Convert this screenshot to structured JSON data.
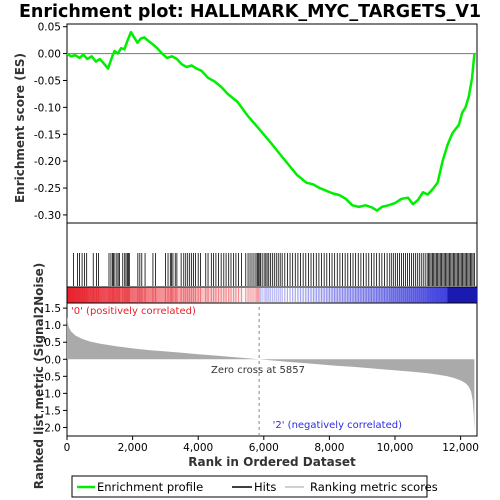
{
  "chart_data": {
    "type": "line",
    "title": "Enrichment plot: HALLMARK_MYC_TARGETS_V1",
    "xlabel": "Rank in Ordered Dataset",
    "ylabel_top": "Enrichment score (ES)",
    "ylabel_bottom": "Ranked list metric (Signal2Noise)",
    "xlim": [
      0,
      12500
    ],
    "x_ticks": [
      0,
      2000,
      4000,
      6000,
      8000,
      10000,
      12000
    ],
    "x_tick_labels": [
      "0",
      "2,000",
      "4,000",
      "6,000",
      "8,000",
      "10,000",
      "12,000"
    ],
    "es_ylim": [
      -0.315,
      0.055
    ],
    "es_ticks": [
      0.05,
      0.0,
      -0.05,
      -0.1,
      -0.15,
      -0.2,
      -0.25,
      -0.3
    ],
    "es_tick_labels": [
      "0.05",
      "0.00",
      "-0.05",
      "-0.10",
      "-0.15",
      "-0.20",
      "-0.25",
      "-0.30"
    ],
    "metric_ylim": [
      -2.25,
      1.65
    ],
    "metric_ticks": [
      1.5,
      1.0,
      0.5,
      0.0,
      -0.5,
      -1.0,
      -1.5,
      -2.0
    ],
    "metric_tick_labels": [
      "1.5",
      "1.0",
      "0.5",
      "0.0",
      "-0.5",
      "-1.0",
      "-1.5",
      "-2.0"
    ],
    "series": [
      {
        "name": "Enrichment profile",
        "color": "#00ee00",
        "x": [
          0,
          120,
          250,
          380,
          500,
          620,
          750,
          880,
          1000,
          1120,
          1250,
          1380,
          1450,
          1550,
          1650,
          1750,
          1850,
          1950,
          2050,
          2150,
          2250,
          2350,
          2450,
          2600,
          2750,
          2900,
          3050,
          3200,
          3350,
          3500,
          3650,
          3800,
          3950,
          4100,
          4300,
          4500,
          4700,
          4900,
          5200,
          5500,
          5857,
          6200,
          6600,
          7000,
          7300,
          7500,
          7700,
          7900,
          8100,
          8300,
          8500,
          8700,
          8900,
          9100,
          9300,
          9450,
          9600,
          9800,
          10000,
          10200,
          10400,
          10550,
          10700,
          10850,
          11000,
          11150,
          11300,
          11450,
          11600,
          11750,
          11850,
          11950,
          12050,
          12150,
          12250,
          12350,
          12420
        ],
        "values": [
          0.0,
          -0.005,
          -0.003,
          -0.008,
          -0.002,
          -0.01,
          -0.005,
          -0.015,
          -0.01,
          -0.018,
          -0.028,
          -0.005,
          0.005,
          0.0,
          0.01,
          0.008,
          0.025,
          0.04,
          0.03,
          0.02,
          0.028,
          0.03,
          0.025,
          0.018,
          0.01,
          0.0,
          -0.008,
          -0.005,
          -0.01,
          -0.02,
          -0.025,
          -0.022,
          -0.028,
          -0.032,
          -0.045,
          -0.052,
          -0.062,
          -0.075,
          -0.09,
          -0.115,
          -0.14,
          -0.165,
          -0.195,
          -0.225,
          -0.24,
          -0.243,
          -0.25,
          -0.255,
          -0.26,
          -0.263,
          -0.27,
          -0.282,
          -0.285,
          -0.282,
          -0.286,
          -0.292,
          -0.285,
          -0.282,
          -0.278,
          -0.27,
          -0.268,
          -0.28,
          -0.272,
          -0.258,
          -0.262,
          -0.252,
          -0.24,
          -0.2,
          -0.17,
          -0.148,
          -0.14,
          -0.132,
          -0.11,
          -0.1,
          -0.08,
          -0.045,
          0.0
        ]
      },
      {
        "name": "Hits",
        "color": "#000000"
      },
      {
        "name": "Ranking metric scores",
        "color": "#c0c0c0",
        "x": [
          0,
          50,
          120,
          250,
          450,
          700,
          1000,
          1500,
          2000,
          2500,
          3000,
          3500,
          4000,
          4500,
          5000,
          5500,
          5857,
          6200,
          6700,
          7200,
          7700,
          8200,
          8700,
          9200,
          9700,
          10200,
          10700,
          11000,
          11300,
          11600,
          11800,
          12000,
          12150,
          12250,
          12320,
          12370,
          12400,
          12420
        ],
        "values": [
          1.25,
          0.95,
          0.82,
          0.7,
          0.6,
          0.52,
          0.46,
          0.38,
          0.32,
          0.27,
          0.23,
          0.19,
          0.15,
          0.11,
          0.07,
          0.03,
          0.0,
          -0.03,
          -0.07,
          -0.11,
          -0.15,
          -0.19,
          -0.22,
          -0.26,
          -0.3,
          -0.34,
          -0.38,
          -0.41,
          -0.45,
          -0.5,
          -0.55,
          -0.62,
          -0.7,
          -0.8,
          -0.95,
          -1.2,
          -1.6,
          -2.12
        ]
      }
    ],
    "hits_x": [
      200,
      320,
      380,
      460,
      530,
      600,
      800,
      900,
      960,
      1280,
      1340,
      1390,
      1420,
      1460,
      1520,
      1560,
      1600,
      1700,
      1760,
      1800,
      1840,
      1870,
      1900,
      2160,
      2220,
      2280,
      2380,
      2620,
      2700,
      3000,
      3080,
      3150,
      3190,
      3230,
      3300,
      3350,
      3480,
      3560,
      3620,
      3680,
      3740,
      3800,
      3860,
      3920,
      4000,
      4070,
      4230,
      4300,
      4400,
      4470,
      4540,
      4620,
      4700,
      4780,
      4850,
      4930,
      5000,
      5080,
      5150,
      5230,
      5320,
      5450,
      5520,
      5580,
      5640,
      5700,
      5760,
      5800,
      5830,
      5860,
      5900,
      5950,
      6010,
      6060,
      6100,
      6150,
      6200,
      6260,
      6320,
      6380,
      6440,
      6500,
      6560,
      6640,
      6720,
      6800,
      6880,
      6960,
      7040,
      7120,
      7200,
      7280,
      7360,
      7440,
      7520,
      7600,
      7680,
      7760,
      7840,
      7920,
      8000,
      8080,
      8160,
      8240,
      8320,
      8400,
      8480,
      8560,
      8640,
      8720,
      8800,
      8880,
      8960,
      9040,
      9120,
      9200,
      9280,
      9360,
      9440,
      9520,
      9600,
      9680,
      9760,
      9840,
      9900,
      9960,
      10020,
      10080,
      10140,
      10200,
      10260,
      10320,
      10380,
      10440,
      10500,
      10560,
      10620,
      10680,
      10740,
      10800,
      10860,
      10920,
      10980,
      11020,
      11060,
      11100,
      11140,
      11180,
      11220,
      11260,
      11300,
      11340,
      11380,
      11420,
      11460,
      11500,
      11540,
      11580,
      11620,
      11660,
      11700,
      11740,
      11780,
      11820,
      11860,
      11900,
      11940,
      11980,
      12020,
      12060,
      12100,
      12140,
      12180,
      12220,
      12260,
      12300,
      12340,
      12380,
      12420
    ],
    "zero_cross_label": "Zero cross at 5857",
    "zero_cross_x": 5857,
    "pos_label": "'0' (positively correlated)",
    "neg_label": "'2' (negatively correlated)",
    "colorbar": {
      "start": "#e8202a",
      "mid": "#ffffff",
      "end": "#2d2ddc",
      "deep_end": "#1a1ab0",
      "deep_start_x": 11600
    },
    "colors": {
      "es_line": "#00ee00",
      "hits": "#000000",
      "metric_fill": "#aaaaaa",
      "pos_text": "#e8202a",
      "neg_text": "#2d2ddc",
      "grid": "#777777"
    }
  },
  "legend": {
    "items": [
      "Enrichment profile",
      "Hits",
      "Ranking metric scores"
    ]
  }
}
